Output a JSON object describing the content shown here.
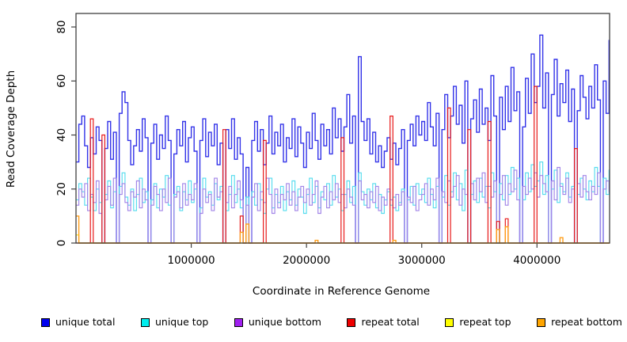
{
  "chart_data": {
    "type": "line",
    "line_style": "step",
    "title": "",
    "xlabel": "Coordinate in Reference Genome",
    "ylabel": "Read Coverage Depth",
    "xlim": [
      0,
      4630000
    ],
    "ylim": [
      0,
      85
    ],
    "grid": false,
    "legend_position": "bottom",
    "x_step": 25000,
    "x_ticks": [
      {
        "value": 1000000,
        "label": "1000000"
      },
      {
        "value": 2000000,
        "label": "2000000"
      },
      {
        "value": 3000000,
        "label": "3000000"
      },
      {
        "value": 4000000,
        "label": "4000000"
      }
    ],
    "y_ticks": [
      {
        "value": 0,
        "label": "0"
      },
      {
        "value": 20,
        "label": "20"
      },
      {
        "value": 40,
        "label": "40"
      },
      {
        "value": 60,
        "label": "60"
      },
      {
        "value": 80,
        "label": "80"
      }
    ],
    "series": [
      {
        "name": "unique total",
        "color": "#0000EE",
        "line_color": "#3232E8",
        "line_width": 1.4,
        "values": [
          30,
          44,
          47,
          36,
          28,
          39,
          33,
          43,
          38,
          0,
          35,
          45,
          31,
          41,
          0,
          48,
          56,
          52,
          38,
          29,
          36,
          42,
          34,
          46,
          39,
          0,
          37,
          44,
          31,
          40,
          35,
          47,
          38,
          0,
          33,
          42,
          36,
          45,
          30,
          39,
          43,
          34,
          0,
          38,
          46,
          32,
          41,
          36,
          44,
          29,
          37,
          0,
          42,
          35,
          46,
          31,
          39,
          33,
          0,
          28,
          0,
          38,
          45,
          34,
          42,
          29,
          37,
          47,
          33,
          41,
          36,
          44,
          30,
          39,
          35,
          46,
          32,
          43,
          37,
          28,
          41,
          35,
          48,
          38,
          31,
          44,
          36,
          42,
          33,
          50,
          39,
          46,
          34,
          43,
          55,
          37,
          47,
          0,
          69,
          45,
          38,
          46,
          33,
          41,
          30,
          36,
          28,
          34,
          39,
          31,
          37,
          29,
          35,
          42,
          0,
          38,
          44,
          36,
          47,
          40,
          45,
          38,
          52,
          43,
          36,
          48,
          0,
          42,
          55,
          39,
          47,
          58,
          44,
          51,
          37,
          60,
          0,
          46,
          53,
          41,
          57,
          44,
          50,
          38,
          62,
          47,
          0,
          54,
          42,
          58,
          45,
          65,
          49,
          56,
          0,
          43,
          61,
          48,
          70,
          52,
          58,
          77,
          50,
          63,
          0,
          55,
          68,
          47,
          59,
          52,
          64,
          45,
          57,
          0,
          49,
          62,
          54,
          46,
          58,
          50,
          66,
          53,
          0,
          60,
          48,
          75
        ]
      },
      {
        "name": "unique top",
        "color": "#00EEEE",
        "line_color": "#55DCEE",
        "line_width": 1.15,
        "values": [
          16,
          22,
          19,
          14,
          24,
          17,
          12,
          20,
          15,
          0,
          18,
          23,
          13,
          19,
          0,
          21,
          26,
          17,
          14,
          20,
          12,
          18,
          24,
          15,
          19,
          0,
          16,
          22,
          13,
          20,
          17,
          25,
          14,
          0,
          18,
          21,
          12,
          19,
          16,
          23,
          15,
          20,
          0,
          13,
          24,
          17,
          19,
          14,
          22,
          16,
          21,
          0,
          12,
          18,
          25,
          15,
          20,
          13,
          0,
          17,
          0,
          19,
          14,
          22,
          16,
          11,
          20,
          24,
          13,
          18,
          15,
          21,
          12,
          19,
          16,
          23,
          14,
          20,
          17,
          11,
          18,
          24,
          15,
          21,
          13,
          19,
          16,
          22,
          14,
          25,
          17,
          20,
          12,
          18,
          23,
          15,
          21,
          0,
          26,
          19,
          14,
          20,
          16,
          22,
          13,
          18,
          11,
          16,
          19,
          14,
          17,
          12,
          15,
          20,
          0,
          16,
          21,
          14,
          22,
          18,
          20,
          15,
          24,
          18,
          13,
          21,
          0,
          17,
          25,
          14,
          19,
          26,
          16,
          22,
          12,
          27,
          0,
          18,
          23,
          15,
          24,
          17,
          21,
          13,
          26,
          19,
          0,
          22,
          16,
          25,
          18,
          28,
          20,
          24,
          0,
          16,
          26,
          19,
          29,
          21,
          23,
          30,
          18,
          25,
          0,
          20,
          27,
          15,
          22,
          19,
          26,
          17,
          21,
          0,
          18,
          24,
          20,
          16,
          23,
          19,
          28,
          21,
          0,
          24,
          18,
          27
        ]
      },
      {
        "name": "unique bottom",
        "color": "#A020F0",
        "line_color": "#A184E8",
        "line_width": 1.15,
        "values": [
          14,
          20,
          17,
          22,
          12,
          18,
          15,
          23,
          11,
          0,
          16,
          21,
          14,
          24,
          0,
          18,
          22,
          15,
          12,
          19,
          17,
          23,
          13,
          20,
          16,
          0,
          14,
          21,
          18,
          12,
          20,
          15,
          24,
          0,
          17,
          19,
          13,
          22,
          14,
          18,
          16,
          22,
          0,
          11,
          20,
          15,
          18,
          12,
          24,
          17,
          19,
          0,
          15,
          21,
          13,
          18,
          23,
          16,
          0,
          14,
          0,
          17,
          22,
          12,
          19,
          15,
          24,
          18,
          11,
          20,
          13,
          18,
          16,
          22,
          14,
          19,
          12,
          17,
          21,
          15,
          20,
          14,
          18,
          23,
          11,
          17,
          21,
          13,
          19,
          16,
          22,
          15,
          18,
          13,
          20,
          17,
          14,
          0,
          23,
          16,
          18,
          13,
          19,
          15,
          21,
          12,
          17,
          14,
          20,
          16,
          13,
          18,
          14,
          19,
          0,
          17,
          15,
          21,
          12,
          16,
          18,
          22,
          14,
          20,
          16,
          24,
          0,
          19,
          15,
          23,
          17,
          21,
          25,
          14,
          20,
          18,
          0,
          22,
          16,
          24,
          19,
          26,
          15,
          21,
          17,
          23,
          0,
          18,
          25,
          14,
          22,
          19,
          27,
          16,
          0,
          21,
          18,
          24,
          20,
          26,
          17,
          25,
          22,
          19,
          0,
          23,
          16,
          28,
          21,
          18,
          24,
          15,
          20,
          0,
          22,
          17,
          25,
          19,
          16,
          21,
          18,
          26,
          0,
          20,
          23,
          19
        ]
      },
      {
        "name": "repeat total",
        "color": "#EE0000",
        "line_color": "#E81A1A",
        "line_width": 1.2,
        "base": 0,
        "spikes": [
          [
            125000,
            46
          ],
          [
            225000,
            40
          ],
          [
            1275000,
            42
          ],
          [
            1430000,
            10
          ],
          [
            1620000,
            38
          ],
          [
            2300000,
            39
          ],
          [
            2730000,
            47
          ],
          [
            3225000,
            50
          ],
          [
            3400000,
            42
          ],
          [
            3575000,
            45
          ],
          [
            3660000,
            8
          ],
          [
            3720000,
            9
          ],
          [
            3975000,
            58
          ],
          [
            4325000,
            35
          ]
        ]
      },
      {
        "name": "repeat top",
        "color": "#FFFF00",
        "line_color": "#FFE800",
        "line_width": 1.2,
        "base": 0,
        "spikes": [
          [
            10000,
            3
          ]
        ]
      },
      {
        "name": "repeat bottom",
        "color": "#FFA500",
        "line_color": "#FF9E1A",
        "line_width": 1.4,
        "base": 0,
        "spikes": [
          [
            10000,
            10
          ],
          [
            1430000,
            4
          ],
          [
            1470000,
            7
          ],
          [
            2070000,
            1
          ],
          [
            2750000,
            1
          ],
          [
            3660000,
            5
          ],
          [
            3720000,
            6
          ],
          [
            4200000,
            2
          ]
        ]
      }
    ]
  }
}
